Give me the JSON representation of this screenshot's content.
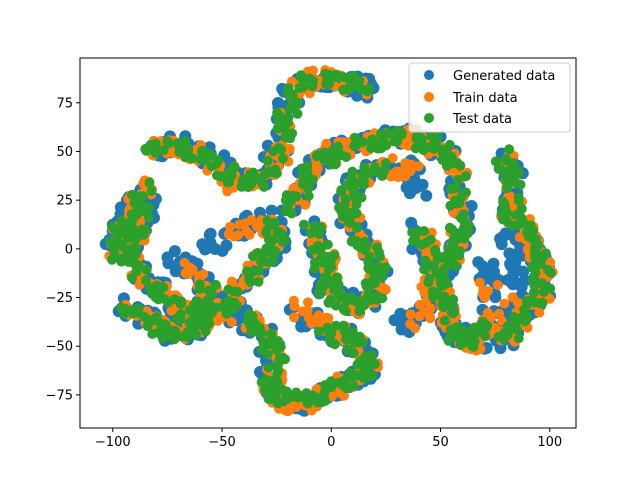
{
  "chart_data": {
    "type": "scatter",
    "title": "",
    "xlabel": "",
    "ylabel": "",
    "xlim": [
      -115,
      112
    ],
    "ylim": [
      -92,
      98
    ],
    "xticks": [
      -100,
      -50,
      0,
      50,
      100
    ],
    "yticks": [
      -75,
      -50,
      -25,
      0,
      25,
      50,
      75
    ],
    "xtick_labels": [
      "−100",
      "−50",
      "0",
      "50",
      "100"
    ],
    "ytick_labels": [
      "−75",
      "−50",
      "−25",
      "0",
      "25",
      "50",
      "75"
    ],
    "grid": false,
    "legend_position": "top-right",
    "series": [
      {
        "name": "Generated data",
        "color": "#1f77b4",
        "cluster_paths": [
          [
            [
              -102,
              -5
            ],
            [
              -96,
              16
            ],
            [
              -84,
              31
            ],
            [
              -86,
              12
            ],
            [
              -92,
              -2
            ],
            [
              -84,
              -15
            ],
            [
              -70,
              -30
            ],
            [
              -58,
              -36
            ],
            [
              -56,
              -20
            ],
            [
              -64,
              -10
            ],
            [
              -72,
              -4
            ]
          ],
          [
            [
              -82,
              50
            ],
            [
              -70,
              54
            ],
            [
              -55,
              48
            ],
            [
              -44,
              36
            ],
            [
              -32,
              35
            ],
            [
              -24,
              50
            ],
            [
              -20,
              75
            ],
            [
              -12,
              88
            ],
            [
              2,
              87
            ],
            [
              14,
              84
            ],
            [
              20,
              80
            ]
          ],
          [
            [
              -96,
              -28
            ],
            [
              -82,
              -38
            ],
            [
              -70,
              -44
            ],
            [
              -62,
              -40
            ],
            [
              -50,
              -30
            ],
            [
              -36,
              -12
            ],
            [
              -24,
              2
            ],
            [
              -28,
              16
            ],
            [
              -44,
              10
            ],
            [
              -56,
              0
            ]
          ],
          [
            [
              -45,
              -32
            ],
            [
              -32,
              -42
            ],
            [
              -26,
              -56
            ],
            [
              -30,
              -72
            ],
            [
              -20,
              -80
            ],
            [
              -8,
              -78
            ],
            [
              4,
              -70
            ],
            [
              16,
              -64
            ],
            [
              20,
              -58
            ],
            [
              8,
              -46
            ],
            [
              -6,
              -40
            ],
            [
              -16,
              -30
            ]
          ],
          [
            [
              -20,
              20
            ],
            [
              -14,
              30
            ],
            [
              -6,
              44
            ],
            [
              4,
              52
            ],
            [
              20,
              56
            ],
            [
              34,
              58
            ],
            [
              46,
              54
            ],
            [
              56,
              44
            ],
            [
              60,
              20
            ],
            [
              58,
              0
            ],
            [
              48,
              -18
            ],
            [
              40,
              -36
            ],
            [
              28,
              -40
            ]
          ],
          [
            [
              -10,
              12
            ],
            [
              -4,
              -6
            ],
            [
              -2,
              -20
            ],
            [
              8,
              -30
            ],
            [
              18,
              -24
            ],
            [
              22,
              -10
            ],
            [
              14,
              4
            ],
            [
              6,
              20
            ],
            [
              10,
              36
            ],
            [
              24,
              44
            ],
            [
              36,
              40
            ],
            [
              40,
              28
            ]
          ],
          [
            [
              38,
              10
            ],
            [
              44,
              -4
            ],
            [
              50,
              -26
            ],
            [
              56,
              -44
            ],
            [
              64,
              -48
            ],
            [
              72,
              -44
            ],
            [
              74,
              -22
            ],
            [
              70,
              -4
            ]
          ],
          [
            [
              78,
              50
            ],
            [
              84,
              36
            ],
            [
              80,
              20
            ],
            [
              88,
              10
            ],
            [
              94,
              -4
            ],
            [
              98,
              -20
            ],
            [
              96,
              -24
            ],
            [
              86,
              -36
            ],
            [
              78,
              -48
            ],
            [
              84,
              -30
            ],
            [
              86,
              -10
            ],
            [
              80,
              8
            ]
          ]
        ]
      },
      {
        "name": "Train data",
        "color": "#ff7f0e",
        "cluster_paths": [
          [
            [
              -100,
              -4
            ],
            [
              -94,
              18
            ],
            [
              -86,
              32
            ],
            [
              -88,
              10
            ],
            [
              -94,
              -4
            ],
            [
              -82,
              -18
            ],
            [
              -70,
              -30
            ],
            [
              -58,
              -34
            ],
            [
              -56,
              -22
            ],
            [
              -66,
              -8
            ]
          ],
          [
            [
              -84,
              52
            ],
            [
              -70,
              53
            ],
            [
              -56,
              46
            ],
            [
              -44,
              34
            ],
            [
              -30,
              36
            ],
            [
              -22,
              52
            ],
            [
              -18,
              76
            ],
            [
              -10,
              88
            ],
            [
              4,
              86
            ],
            [
              16,
              82
            ]
          ],
          [
            [
              -94,
              -30
            ],
            [
              -80,
              -40
            ],
            [
              -68,
              -42
            ],
            [
              -60,
              -38
            ],
            [
              -48,
              -28
            ],
            [
              -34,
              -10
            ],
            [
              -26,
              4
            ],
            [
              -30,
              14
            ],
            [
              -46,
              8
            ]
          ],
          [
            [
              -42,
              -34
            ],
            [
              -30,
              -44
            ],
            [
              -24,
              -58
            ],
            [
              -28,
              -74
            ],
            [
              -18,
              -80
            ],
            [
              -6,
              -78
            ],
            [
              6,
              -70
            ],
            [
              18,
              -62
            ],
            [
              10,
              -48
            ],
            [
              -4,
              -40
            ],
            [
              -14,
              -30
            ]
          ],
          [
            [
              -18,
              22
            ],
            [
              -12,
              32
            ],
            [
              -4,
              46
            ],
            [
              6,
              52
            ],
            [
              22,
              56
            ],
            [
              36,
              58
            ],
            [
              48,
              52
            ],
            [
              58,
              42
            ],
            [
              60,
              18
            ],
            [
              56,
              -2
            ],
            [
              46,
              -20
            ],
            [
              38,
              -38
            ]
          ],
          [
            [
              -8,
              10
            ],
            [
              -2,
              -8
            ],
            [
              0,
              -22
            ],
            [
              10,
              -30
            ],
            [
              20,
              -22
            ],
            [
              22,
              -8
            ],
            [
              12,
              6
            ],
            [
              8,
              22
            ],
            [
              12,
              36
            ],
            [
              26,
              44
            ],
            [
              38,
              38
            ]
          ],
          [
            [
              40,
              8
            ],
            [
              46,
              -6
            ],
            [
              52,
              -28
            ],
            [
              58,
              -46
            ],
            [
              66,
              -48
            ],
            [
              74,
              -40
            ],
            [
              72,
              -20
            ]
          ],
          [
            [
              80,
              48
            ],
            [
              84,
              34
            ],
            [
              82,
              18
            ],
            [
              90,
              8
            ],
            [
              96,
              -6
            ],
            [
              98,
              -22
            ],
            [
              88,
              -36
            ],
            [
              80,
              -46
            ],
            [
              84,
              -28
            ]
          ]
        ]
      },
      {
        "name": "Test data",
        "color": "#2ca02c",
        "cluster_paths": [
          [
            [
              -101,
              -6
            ],
            [
              -95,
              15
            ],
            [
              -85,
              30
            ],
            [
              -87,
              11
            ],
            [
              -93,
              -3
            ],
            [
              -83,
              -16
            ],
            [
              -71,
              -31
            ],
            [
              -59,
              -35
            ],
            [
              -57,
              -21
            ]
          ],
          [
            [
              -83,
              51
            ],
            [
              -71,
              53
            ],
            [
              -55,
              47
            ],
            [
              -43,
              35
            ],
            [
              -31,
              35
            ],
            [
              -23,
              51
            ],
            [
              -19,
              75
            ],
            [
              -11,
              87
            ],
            [
              3,
              86
            ],
            [
              15,
              83
            ]
          ],
          [
            [
              -95,
              -29
            ],
            [
              -81,
              -39
            ],
            [
              -69,
              -43
            ],
            [
              -61,
              -39
            ],
            [
              -49,
              -29
            ],
            [
              -35,
              -11
            ],
            [
              -25,
              3
            ],
            [
              -29,
              15
            ]
          ],
          [
            [
              -43,
              -33
            ],
            [
              -31,
              -43
            ],
            [
              -25,
              -57
            ],
            [
              -29,
              -73
            ],
            [
              -19,
              -79
            ],
            [
              -7,
              -77
            ],
            [
              5,
              -69
            ],
            [
              17,
              -63
            ],
            [
              9,
              -47
            ],
            [
              -5,
              -39
            ]
          ],
          [
            [
              -19,
              21
            ],
            [
              -13,
              31
            ],
            [
              -5,
              45
            ],
            [
              5,
              51
            ],
            [
              21,
              55
            ],
            [
              35,
              57
            ],
            [
              47,
              53
            ],
            [
              57,
              43
            ],
            [
              59,
              19
            ],
            [
              57,
              -1
            ],
            [
              47,
              -19
            ]
          ],
          [
            [
              -9,
              11
            ],
            [
              -3,
              -7
            ],
            [
              -1,
              -21
            ],
            [
              9,
              -29
            ],
            [
              19,
              -23
            ],
            [
              21,
              -9
            ],
            [
              13,
              5
            ],
            [
              7,
              21
            ],
            [
              11,
              35
            ],
            [
              25,
              43
            ]
          ],
          [
            [
              39,
              9
            ],
            [
              45,
              -5
            ],
            [
              51,
              -27
            ],
            [
              57,
              -45
            ],
            [
              65,
              -47
            ],
            [
              73,
              -41
            ]
          ],
          [
            [
              79,
              49
            ],
            [
              83,
              35
            ],
            [
              81,
              19
            ],
            [
              89,
              9
            ],
            [
              95,
              -5
            ],
            [
              97,
              -21
            ],
            [
              87,
              -35
            ],
            [
              79,
              -47
            ]
          ]
        ]
      }
    ]
  }
}
